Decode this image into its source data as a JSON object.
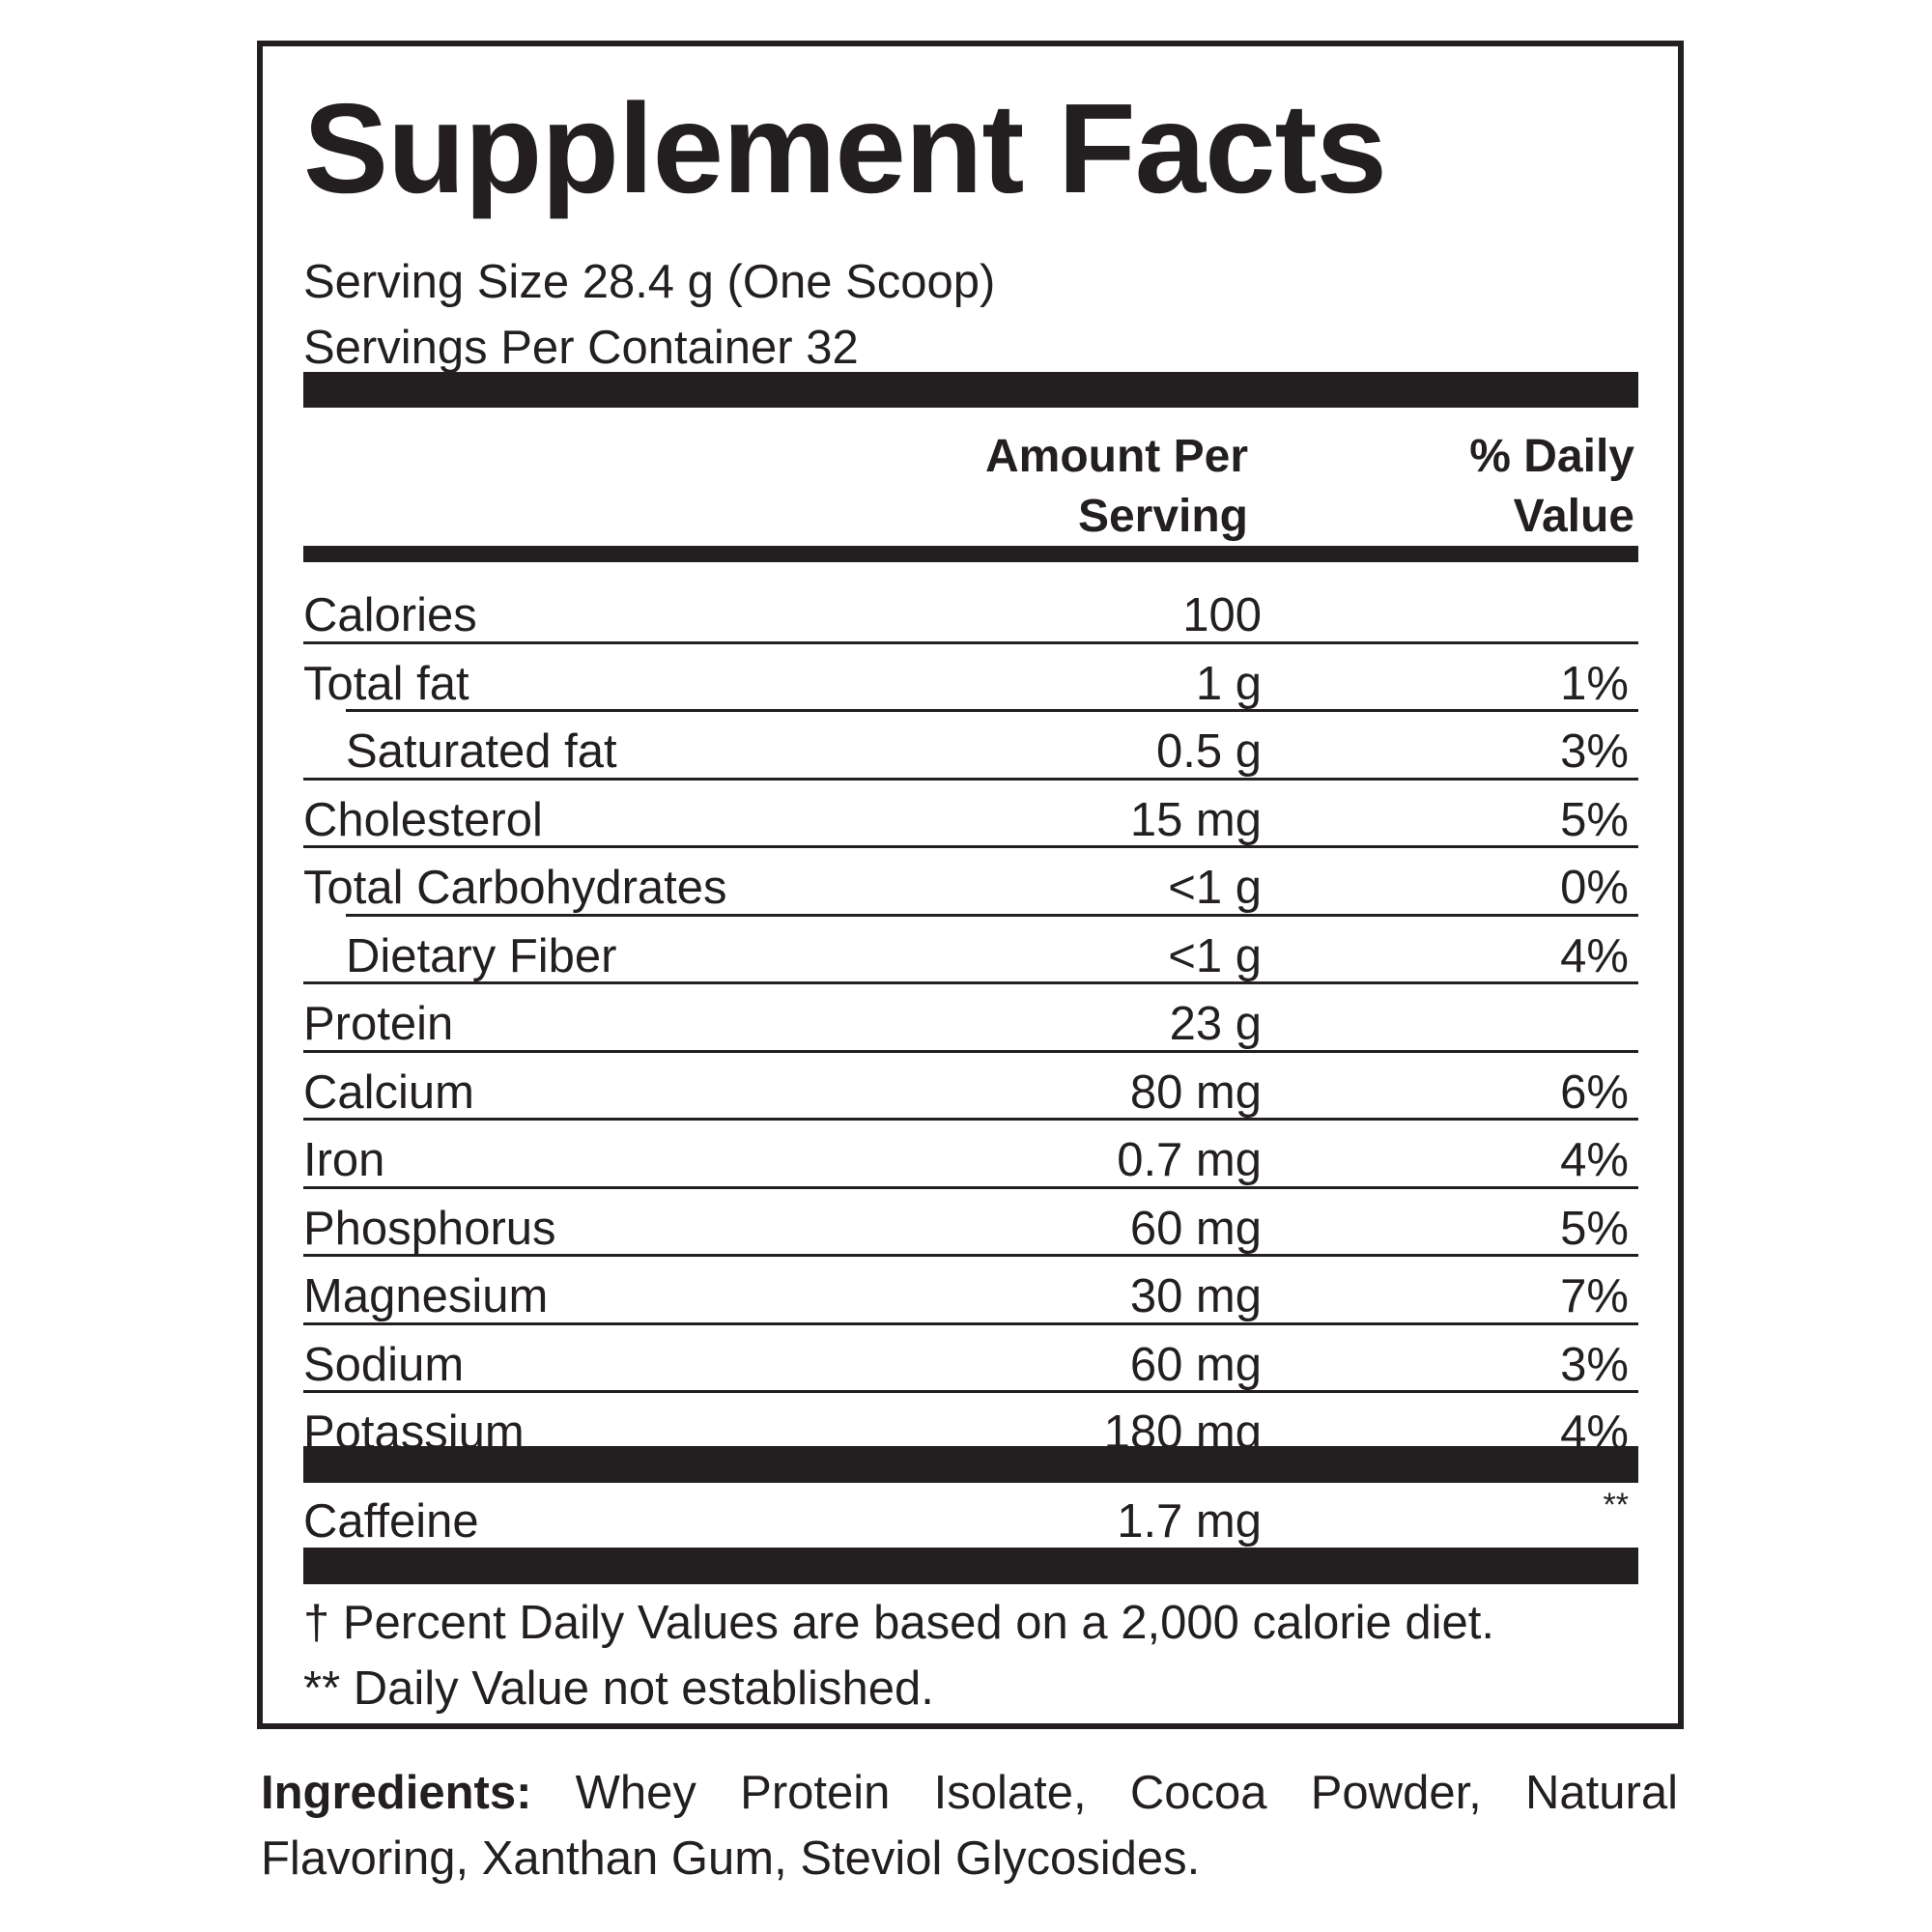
{
  "header": {
    "title": "Supplement Facts",
    "serving_size": "Serving Size 28.4 g (One Scoop)",
    "servings_per_container": "Servings Per Container 32"
  },
  "table": {
    "columns": [
      "Amount Per Serving",
      "% Daily Value"
    ],
    "rows": [
      {
        "name": "Calories",
        "amount": "100",
        "daily_value": null,
        "indent": false
      },
      {
        "name": "Total fat",
        "amount": "1 g",
        "daily_value": "1%",
        "indent": false
      },
      {
        "name": "Saturated fat",
        "amount": "0.5 g",
        "daily_value": "3%",
        "indent": true
      },
      {
        "name": "Cholesterol",
        "amount": "15 mg",
        "daily_value": "5%",
        "indent": false
      },
      {
        "name": "Total Carbohydrates",
        "amount": "<1 g",
        "daily_value": "0%",
        "indent": false
      },
      {
        "name": "Dietary Fiber",
        "amount": "<1 g",
        "daily_value": "4%",
        "indent": true
      },
      {
        "name": "Protein",
        "amount": "23 g",
        "daily_value": null,
        "indent": false
      },
      {
        "name": "Calcium",
        "amount": "80 mg",
        "daily_value": "6%",
        "indent": false
      },
      {
        "name": "Iron",
        "amount": "0.7 mg",
        "daily_value": "4%",
        "indent": false
      },
      {
        "name": "Phosphorus",
        "amount": "60 mg",
        "daily_value": "5%",
        "indent": false
      },
      {
        "name": "Magnesium",
        "amount": "30 mg",
        "daily_value": "7%",
        "indent": false
      },
      {
        "name": "Sodium",
        "amount": "60 mg",
        "daily_value": "3%",
        "indent": false
      },
      {
        "name": "Potassium",
        "amount": "180 mg",
        "daily_value": "4%",
        "indent": false
      }
    ],
    "other": {
      "name": "Caffeine",
      "amount": "1.7 mg",
      "daily_value": "**"
    }
  },
  "footnotes": [
    "† Percent Daily Values are based on a 2,000 calorie diet.",
    "** Daily Value not established."
  ],
  "ingredients": {
    "label": "Ingredients:",
    "text": "Whey Protein Isolate, Cocoa Powder, Natural Flavoring, Xanthan Gum, Steviol Glycosides."
  }
}
